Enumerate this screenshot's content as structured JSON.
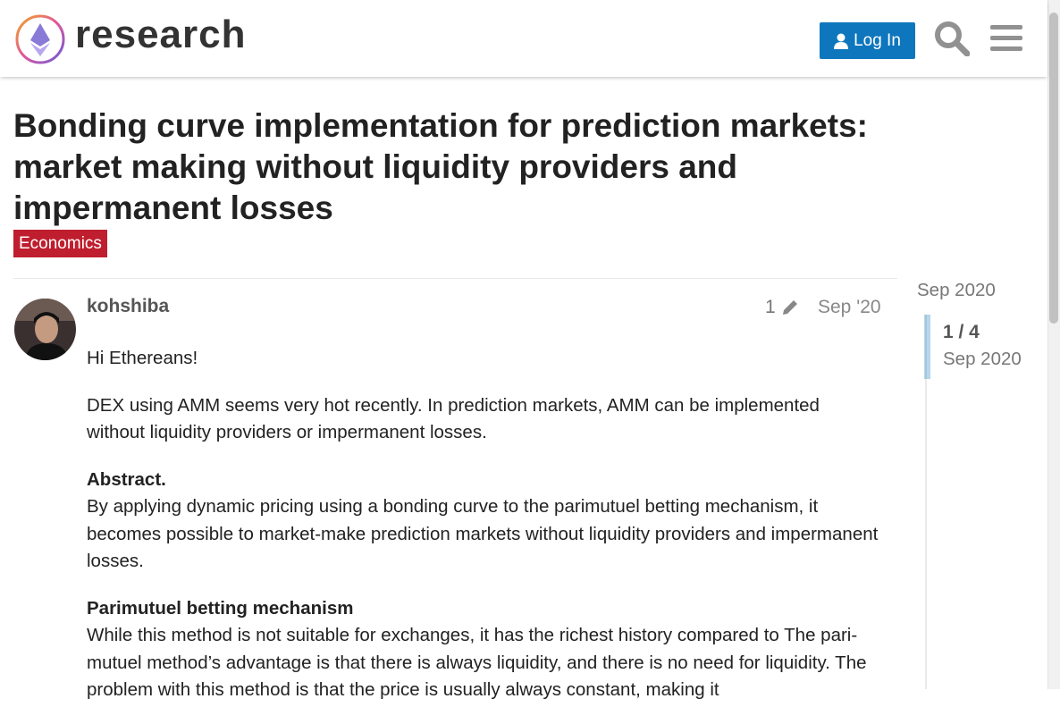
{
  "header": {
    "site_name": "research",
    "login_button": "Log In"
  },
  "topic": {
    "title": "Bonding curve implementation for prediction markets: market making without liquidity providers and impermanent losses",
    "category": "Economics"
  },
  "post": {
    "username": "kohshiba",
    "edit_count": "1",
    "date": "Sep '20",
    "paragraphs": [
      "Hi Ethereans!",
      "DEX using AMM seems very hot recently. In prediction markets, AMM can be implemented without liquidity providers or impermanent losses.",
      {
        "heading": "Abstract.",
        "text": "By applying dynamic pricing using a bonding curve to the parimutuel betting mechanism, it becomes possible to market-make prediction markets without liquidity providers and impermanent losses."
      },
      {
        "heading": "Parimutuel betting mechanism",
        "text": "While this method is not suitable for exchanges, it has the richest history compared to The pari-mutuel method’s advantage is that there is always liquidity, and there is no need for liquidity. The problem with this method is that the price is usually always constant, making it"
      }
    ]
  },
  "timeline": {
    "start": "Sep 2020",
    "position": "1 / 4",
    "current_date": "Sep 2020"
  }
}
